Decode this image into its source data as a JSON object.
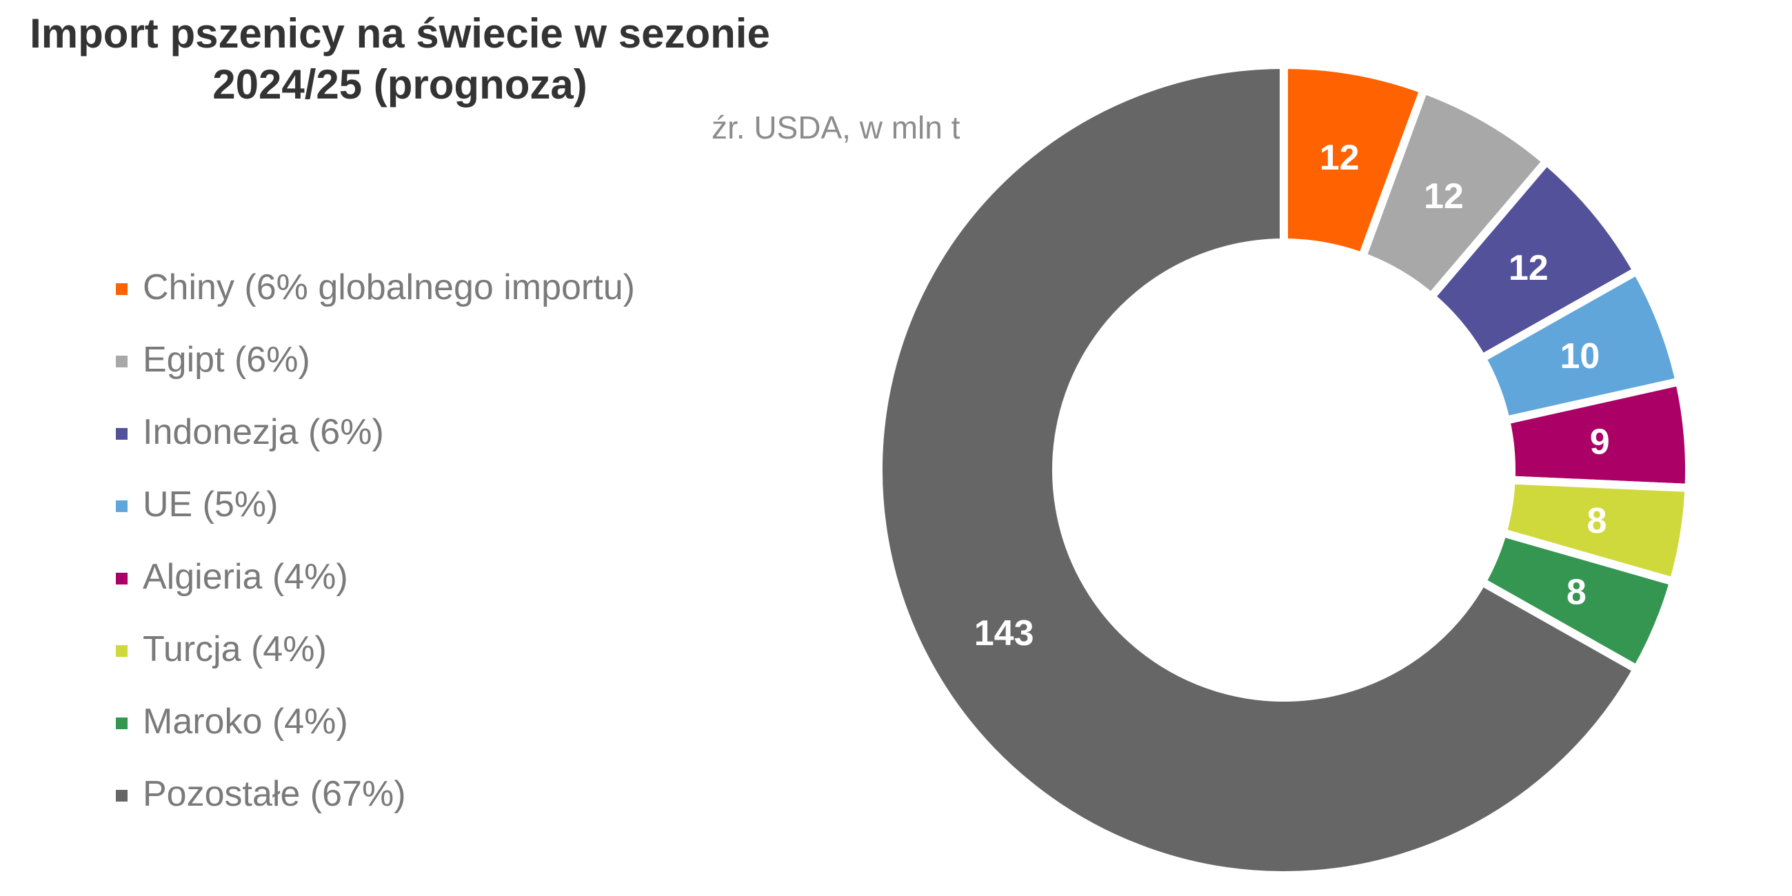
{
  "title_line1": "Import pszenicy na świecie w sezonie",
  "title_line2": "2024/25 (prognoza)",
  "source": "źr. USDA, w mln t",
  "legend": [
    {
      "label": "Chiny (6% globalnego importu)",
      "color": "#ff6200"
    },
    {
      "label": "Egipt (6%)",
      "color": "#a8a8a8"
    },
    {
      "label": "Indonezja (6%)",
      "color": "#525199"
    },
    {
      "label": "UE (5%)",
      "color": "#60a6da"
    },
    {
      "label": "Algieria (4%)",
      "color": "#ab0066"
    },
    {
      "label": "Turcja (4%)",
      "color": "#d0d93c"
    },
    {
      "label": "Maroko (4%)",
      "color": "#349651"
    },
    {
      "label": "Pozostałe (67%)",
      "color": "#666666"
    }
  ],
  "chart_data": {
    "type": "pie",
    "hole": true,
    "title": "Import pszenicy na świecie w sezonie 2024/25 (prognoza)",
    "subtitle": "źr. USDA, w mln t",
    "legend_position": "left",
    "categories": [
      "Chiny (6% globalnego importu)",
      "Egipt (6%)",
      "Indonezja (6%)",
      "UE (5%)",
      "Algieria (4%)",
      "Turcja (4%)",
      "Maroko (4%)",
      "Pozostałe (67%)"
    ],
    "values": [
      12,
      12,
      12,
      10,
      9,
      8,
      8,
      143
    ],
    "labels": [
      "12",
      "12",
      "12",
      "10",
      "9",
      "8",
      "8",
      "143"
    ],
    "colors": [
      "#ff6200",
      "#a8a8a8",
      "#525199",
      "#60a6da",
      "#ab0066",
      "#d0d93c",
      "#349651",
      "#666666"
    ]
  }
}
